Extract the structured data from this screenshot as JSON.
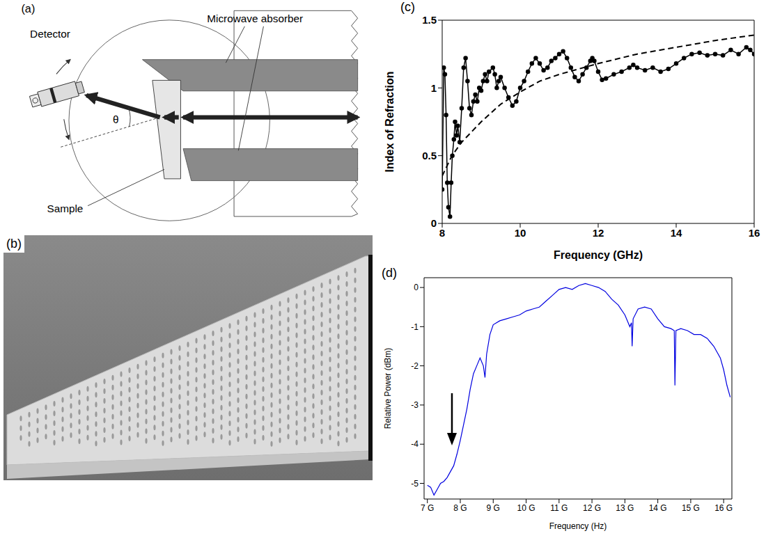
{
  "panel_labels": {
    "a": "(a)",
    "b": "(b)",
    "c": "(c)",
    "d": "(d)"
  },
  "diagram": {
    "labels": {
      "absorber": "Microwave absorber",
      "detector": "Detector",
      "sample": "Sample",
      "angle": "θ"
    }
  },
  "chart_data": [
    {
      "type": "line",
      "x_label": "Frequency (GHz)",
      "y_label": "Index of Refraction",
      "xlim": [
        8,
        16
      ],
      "xticks": [
        8,
        10,
        12,
        14,
        16
      ],
      "ylim": [
        0,
        1.5
      ],
      "yticks": [
        0,
        0.5,
        1,
        1.5
      ],
      "series": [
        {
          "color": "#000000",
          "marker": "circle",
          "line_style": "solid",
          "x": [
            8.0,
            8.04,
            8.07,
            8.1,
            8.13,
            8.16,
            8.2,
            8.23,
            8.26,
            8.3,
            8.33,
            8.37,
            8.4,
            8.45,
            8.5,
            8.55,
            8.6,
            8.65,
            8.7,
            8.75,
            8.8,
            8.85,
            8.9,
            8.95,
            9.0,
            9.05,
            9.1,
            9.15,
            9.2,
            9.3,
            9.35,
            9.4,
            9.45,
            9.5,
            9.6,
            9.7,
            9.8,
            9.9,
            10.0,
            10.1,
            10.2,
            10.3,
            10.4,
            10.5,
            10.6,
            10.7,
            10.8,
            10.9,
            11.0,
            11.1,
            11.2,
            11.3,
            11.4,
            11.5,
            11.6,
            11.7,
            11.8,
            11.85,
            11.9,
            12.0,
            12.1,
            12.2,
            12.4,
            12.6,
            12.8,
            12.9,
            13.0,
            13.2,
            13.4,
            13.6,
            13.8,
            14.0,
            14.2,
            14.4,
            14.6,
            14.8,
            15.0,
            15.2,
            15.4,
            15.6,
            15.8,
            15.9,
            16.0
          ],
          "values": [
            0.25,
            1.15,
            1.1,
            0.8,
            0.3,
            0.12,
            0.05,
            0.3,
            0.5,
            0.62,
            0.75,
            0.65,
            0.72,
            0.6,
            0.85,
            1.15,
            1.22,
            1.05,
            0.85,
            0.8,
            0.9,
            0.95,
            0.9,
            1.0,
            0.98,
            1.05,
            1.1,
            1.05,
            1.12,
            1.15,
            1.1,
            1.0,
            1.05,
            1.08,
            1.0,
            0.93,
            0.87,
            0.9,
            1.0,
            1.05,
            1.12,
            1.18,
            1.22,
            1.18,
            1.13,
            1.15,
            1.2,
            1.22,
            1.25,
            1.27,
            1.22,
            1.15,
            1.08,
            1.05,
            1.1,
            1.15,
            1.2,
            1.22,
            1.2,
            1.12,
            1.06,
            1.07,
            1.1,
            1.12,
            1.15,
            1.17,
            1.15,
            1.13,
            1.15,
            1.12,
            1.14,
            1.18,
            1.22,
            1.25,
            1.26,
            1.24,
            1.25,
            1.24,
            1.28,
            1.25,
            1.3,
            1.28,
            1.25
          ]
        },
        {
          "color": "#000000",
          "marker": "none",
          "line_style": "dashed",
          "x": [
            8,
            8.25,
            8.5,
            9,
            9.5,
            10,
            10.5,
            11,
            12,
            13,
            14,
            15,
            16
          ],
          "values": [
            0.35,
            0.5,
            0.6,
            0.75,
            0.88,
            0.97,
            1.05,
            1.1,
            1.18,
            1.25,
            1.3,
            1.35,
            1.39
          ]
        }
      ]
    },
    {
      "type": "line",
      "x_label": "Frequency (Hz)",
      "y_label": "Relative Power (dBm)",
      "color": "#0000e0",
      "xlim": [
        6900000000.0,
        16250000000.0
      ],
      "xticks": [
        {
          "value": 7000000000.0,
          "label": "7 G"
        },
        {
          "value": 8000000000.0,
          "label": "8 G"
        },
        {
          "value": 9000000000.0,
          "label": "9 G"
        },
        {
          "value": 10000000000.0,
          "label": "10 G"
        },
        {
          "value": 11000000000.0,
          "label": "11 G"
        },
        {
          "value": 12000000000.0,
          "label": "12 G"
        },
        {
          "value": 13000000000.0,
          "label": "13 G"
        },
        {
          "value": 14000000000.0,
          "label": "14 G"
        },
        {
          "value": 15000000000.0,
          "label": "15 G"
        },
        {
          "value": 16000000000.0,
          "label": "16 G"
        }
      ],
      "ylim": [
        -5.4,
        0.25
      ],
      "yticks": [
        -5,
        -4,
        -3,
        -2,
        -1,
        0
      ],
      "x": [
        7000000000.0,
        7100000000.0,
        7200000000.0,
        7300000000.0,
        7400000000.0,
        7500000000.0,
        7600000000.0,
        7700000000.0,
        7800000000.0,
        7900000000.0,
        8000000000.0,
        8100000000.0,
        8200000000.0,
        8300000000.0,
        8400000000.0,
        8500000000.0,
        8600000000.0,
        8700000000.0,
        8750000000.0,
        8800000000.0,
        8900000000.0,
        9000000000.0,
        9200000000.0,
        9400000000.0,
        9600000000.0,
        9800000000.0,
        10000000000.0,
        10200000000.0,
        10400000000.0,
        10600000000.0,
        10800000000.0,
        11000000000.0,
        11200000000.0,
        11400000000.0,
        11600000000.0,
        11800000000.0,
        12000000000.0,
        12200000000.0,
        12400000000.0,
        12600000000.0,
        12800000000.0,
        13000000000.0,
        13100000000.0,
        13150000000.0,
        13200000000.0,
        13220000000.0,
        13250000000.0,
        13400000000.0,
        13600000000.0,
        13800000000.0,
        14000000000.0,
        14200000000.0,
        14400000000.0,
        14500000000.0,
        14520000000.0,
        14550000000.0,
        14700000000.0,
        14900000000.0,
        15100000000.0,
        15300000000.0,
        15500000000.0,
        15700000000.0,
        15900000000.0,
        16000000000.0,
        16100000000.0,
        16200000000.0
      ],
      "values": [
        -5.05,
        -5.1,
        -5.3,
        -5.15,
        -5.0,
        -4.95,
        -4.85,
        -4.7,
        -4.55,
        -4.25,
        -3.9,
        -3.5,
        -3.1,
        -2.6,
        -2.2,
        -2.0,
        -1.8,
        -2.0,
        -2.3,
        -1.7,
        -1.2,
        -0.95,
        -0.85,
        -0.8,
        -0.75,
        -0.7,
        -0.6,
        -0.55,
        -0.5,
        -0.35,
        -0.2,
        -0.05,
        0.0,
        -0.05,
        0.05,
        0.1,
        0.05,
        0.0,
        -0.1,
        -0.3,
        -0.45,
        -0.7,
        -0.9,
        -1.0,
        -0.9,
        -1.5,
        -0.8,
        -0.55,
        -0.5,
        -0.55,
        -0.8,
        -1.0,
        -1.05,
        -1.1,
        -2.5,
        -1.1,
        -1.05,
        -1.1,
        -1.2,
        -1.2,
        -1.3,
        -1.5,
        -1.8,
        -2.1,
        -2.5,
        -2.8
      ]
    }
  ]
}
